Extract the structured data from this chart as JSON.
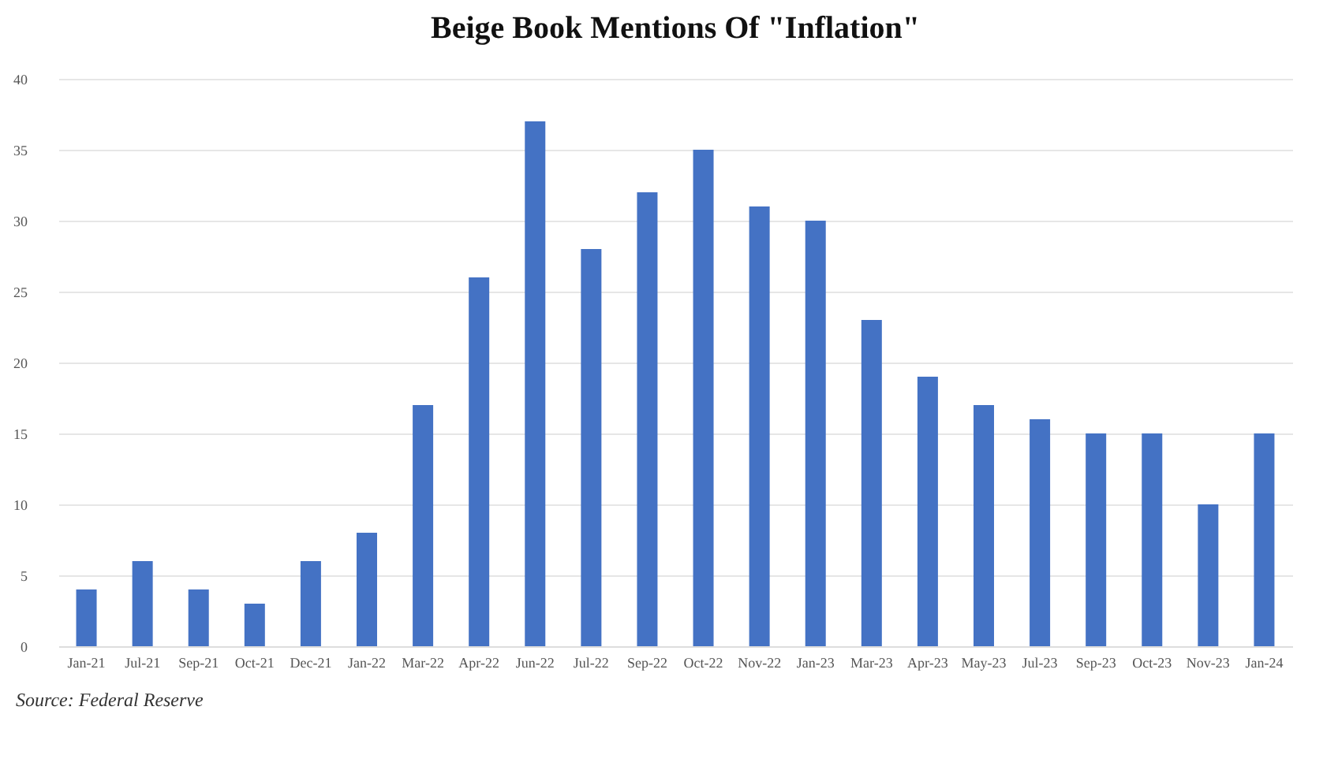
{
  "chart_data": {
    "type": "bar",
    "title": "Beige Book Mentions Of \"Inflation\"",
    "categories": [
      "Jan-21",
      "Jul-21",
      "Sep-21",
      "Oct-21",
      "Dec-21",
      "Jan-22",
      "Mar-22",
      "Apr-22",
      "Jun-22",
      "Jul-22",
      "Sep-22",
      "Oct-22",
      "Nov-22",
      "Jan-23",
      "Mar-23",
      "Apr-23",
      "May-23",
      "Jul-23",
      "Sep-23",
      "Oct-23",
      "Nov-23",
      "Jan-24"
    ],
    "values": [
      4,
      6,
      4,
      3,
      6,
      8,
      17,
      26,
      37,
      28,
      32,
      35,
      31,
      30,
      23,
      19,
      17,
      16,
      15,
      15,
      10,
      15
    ],
    "color": "#4472c4",
    "ylim": [
      0,
      40
    ],
    "yticks": [
      0,
      5,
      10,
      15,
      20,
      25,
      30,
      35,
      40
    ],
    "grid": "y",
    "annotations": [
      "Source: Federal Reserve"
    ]
  }
}
